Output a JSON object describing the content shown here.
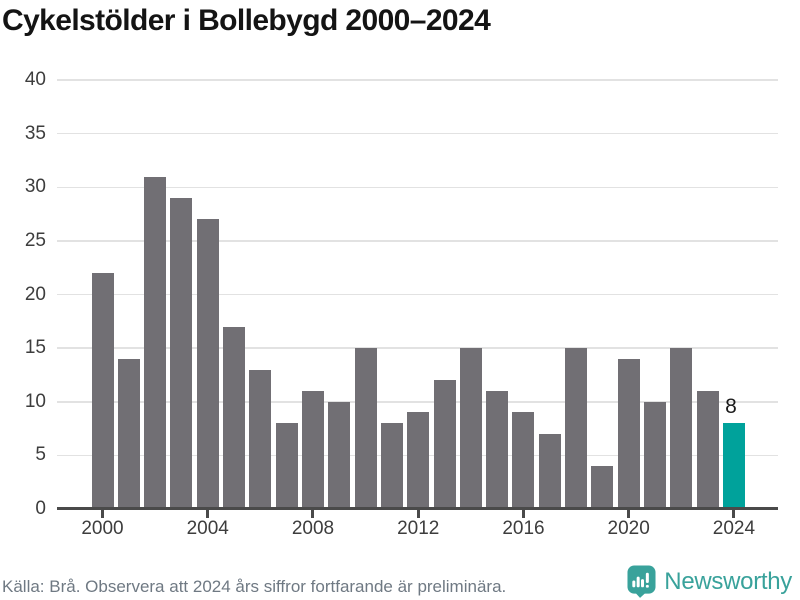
{
  "chart_data": {
    "type": "bar",
    "title": "Cykelstölder i Bollebygd 2000–2024",
    "xlabel": "",
    "ylabel": "",
    "categories": [
      2000,
      2001,
      2002,
      2003,
      2004,
      2005,
      2006,
      2007,
      2008,
      2009,
      2010,
      2011,
      2012,
      2013,
      2014,
      2015,
      2016,
      2017,
      2018,
      2019,
      2020,
      2021,
      2022,
      2023,
      2024
    ],
    "values": [
      22,
      14,
      31,
      29,
      27,
      17,
      13,
      8,
      11,
      10,
      15,
      8,
      9,
      12,
      15,
      11,
      9,
      7,
      15,
      4,
      14,
      10,
      15,
      11,
      8
    ],
    "ylim": [
      0,
      40
    ],
    "ytick_step": 5,
    "yticks": [
      0,
      5,
      10,
      15,
      20,
      25,
      30,
      35,
      40
    ],
    "xticks_labeled": [
      2000,
      2004,
      2008,
      2012,
      2016,
      2020,
      2024
    ],
    "grid": "horizontal",
    "legend": "none",
    "highlight_index": 24,
    "highlight_label": "8",
    "colors": {
      "bar": "#716f74",
      "highlight": "#00a29b",
      "gridline": "#e2e2e2",
      "axis": "#4a4a4a",
      "tick_label": "#3d3d3d",
      "annotation": "#1a1a1a"
    }
  },
  "footer": {
    "source": "Källa: Brå. Observera att 2024 års siffror fortfarande är preliminära.",
    "brand": "Newsworthy",
    "brand_color": "#39a29b"
  }
}
